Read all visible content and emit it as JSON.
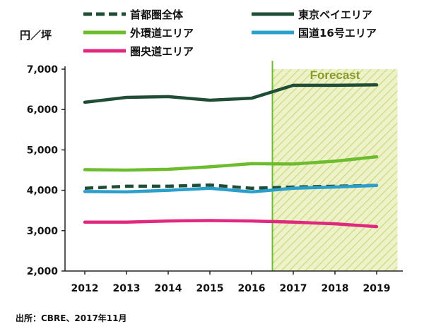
{
  "chart_data": {
    "type": "line",
    "ylabel": "円／坪",
    "ylim": [
      2000,
      7000
    ],
    "yticks": [
      "2,000",
      "3,000",
      "4,000",
      "5,000",
      "6,000",
      "7,000"
    ],
    "ytick_values": [
      2000,
      3000,
      4000,
      5000,
      6000,
      7000
    ],
    "categories": [
      "2012",
      "2013",
      "2014",
      "2015",
      "2016",
      "2017",
      "2018",
      "2019"
    ],
    "forecast": {
      "label": "Forecast",
      "from_x": 2016.5,
      "to_x": 2019.5
    },
    "grid": false,
    "legend_position": "top",
    "series": [
      {
        "name": "首都圏全体",
        "color": "#1f4d35",
        "dashed": true,
        "values": [
          4050,
          4100,
          4100,
          4130,
          4050,
          4080,
          4100,
          4120
        ]
      },
      {
        "name": "東京ベイエリア",
        "color": "#1f4d35",
        "dashed": false,
        "values": [
          6180,
          6300,
          6320,
          6230,
          6280,
          6600,
          6600,
          6610
        ]
      },
      {
        "name": "外環道エリア",
        "color": "#6cbd2e",
        "dashed": false,
        "values": [
          4510,
          4500,
          4520,
          4580,
          4660,
          4650,
          4720,
          4830
        ]
      },
      {
        "name": "国道16号エリア",
        "color": "#2a9fcc",
        "dashed": false,
        "values": [
          3970,
          3960,
          4000,
          4050,
          3960,
          4050,
          4080,
          4120
        ]
      },
      {
        "name": "圏央道エリア",
        "color": "#e0287f",
        "dashed": false,
        "values": [
          3210,
          3210,
          3240,
          3250,
          3240,
          3210,
          3170,
          3100
        ]
      }
    ],
    "source": "出所：CBRE、2017年11月"
  }
}
